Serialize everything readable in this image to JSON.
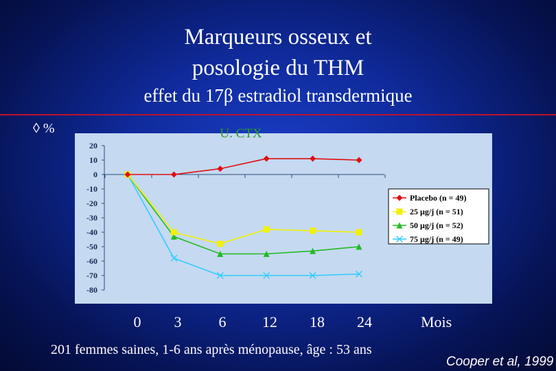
{
  "slide": {
    "title_line1": "Marqueurs osseux et",
    "title_line2": "posologie du THM",
    "subtitle": "effet du 17β estradiol transdermique",
    "delta_label": "◊ %",
    "footer": "201 femmes saines, 1-6 ans après ménopause, âge : 53 ans",
    "citation": "Cooper et al, 1999"
  },
  "colors": {
    "plot_bg": "#c5d9f1",
    "accent_red": "#c0102a",
    "title_green": "#2e9a2e"
  },
  "chart_data": {
    "type": "line",
    "title": "U. CTX",
    "xlabel": "Mois",
    "ylabel": "",
    "x": [
      0,
      3,
      6,
      12,
      18,
      24
    ],
    "ylim": [
      -80,
      20
    ],
    "yticks": [
      20,
      10,
      0,
      -10,
      -20,
      -30,
      -40,
      -50,
      -60,
      -70,
      -80
    ],
    "ytick_labels": [
      "20",
      "10",
      "0",
      "-10",
      "-20",
      "-30",
      "-40",
      "-50",
      "-60",
      "-70",
      "-80"
    ],
    "grid": false,
    "legend": "right",
    "series": [
      {
        "name": "Placebo (n = 49)",
        "color": "#e01010",
        "marker": "diamond",
        "values": [
          0,
          0,
          4,
          11,
          11,
          10
        ]
      },
      {
        "name": "25 µg/j (n = 51)",
        "color": "#f2f200",
        "marker": "square",
        "values": [
          0,
          -40,
          -48,
          -38,
          -39,
          -40
        ]
      },
      {
        "name": "50 µg/j (n = 52)",
        "color": "#22bb22",
        "marker": "triangle",
        "values": [
          0,
          -43,
          -55,
          -55,
          -53,
          -50
        ]
      },
      {
        "name": "75 µg/j (n = 49)",
        "color": "#33ccff",
        "marker": "x",
        "values": [
          0,
          -58,
          -70,
          -70,
          -70,
          -69
        ]
      }
    ]
  }
}
